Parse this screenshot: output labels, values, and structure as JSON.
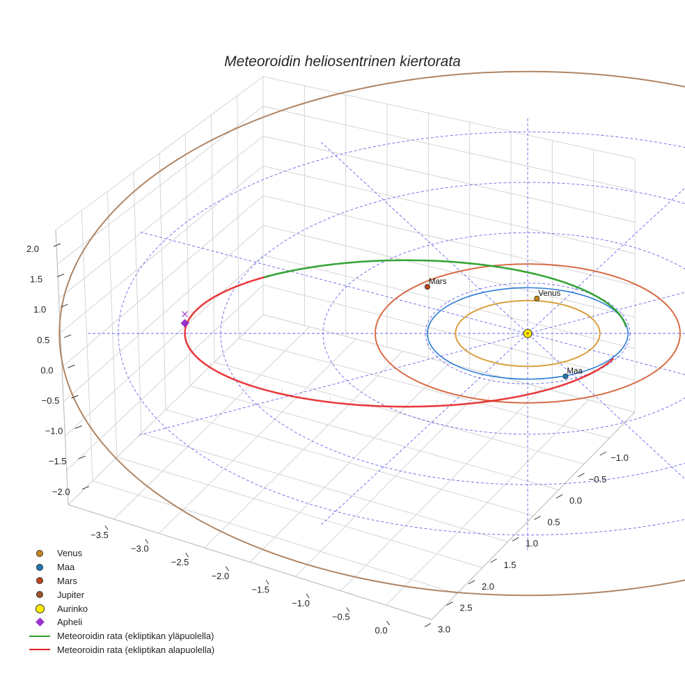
{
  "chart_data": {
    "type": "scatter",
    "title": "Meteoroidin heliosentrinen kiertorata",
    "axes": {
      "x_ticks": [
        "−3.5",
        "−3.0",
        "−2.5",
        "−2.0",
        "−1.5",
        "−1.0",
        "−0.5",
        "0.0"
      ],
      "y_ticks": [
        "−1.0",
        "−0.5",
        "0.0",
        "0.5",
        "1.0",
        "1.5",
        "2.0",
        "2.5",
        "3.0"
      ],
      "z_ticks": [
        "2.0",
        "1.5",
        "1.0",
        "0.5",
        "0.0",
        "−0.5",
        "−1.0",
        "−1.5",
        "−2.0"
      ],
      "x_range": [
        -3.7,
        0.2
      ],
      "y_range": [
        -1.3,
        3.1
      ],
      "z_range": [
        -2.2,
        2.2
      ],
      "grid": true
    },
    "sun": {
      "name": "Aurinko",
      "x": 0,
      "y": 0,
      "z": 0,
      "color": "#ffee00"
    },
    "planets": [
      {
        "name": "Venus",
        "orbit_radius": 0.72,
        "color": "#c8861a",
        "orbit_color": "#d9a040",
        "show_label": true
      },
      {
        "name": "Maa",
        "orbit_radius": 1.0,
        "color": "#1f77b4",
        "orbit_color": "#2b7bd6",
        "show_label": true
      },
      {
        "name": "Mars",
        "orbit_radius": 1.52,
        "color": "#c2441c",
        "orbit_color": "#d86a44",
        "show_label": true
      },
      {
        "name": "Jupiter",
        "orbit_radius": 5.2,
        "color": "#a0522d",
        "orbit_color": "#b08462",
        "show_label": false
      }
    ],
    "meteoroid_orbit": {
      "perihelion_au": 0.97,
      "aphelion_au": 3.35,
      "segments": [
        {
          "name": "Meteoroidin rata (ekliptikan yläpuolella)",
          "color": "#2ca02c"
        },
        {
          "name": "Meteoroidin rata (ekliptikan alapuolella)",
          "color": "#e41a1c"
        }
      ]
    },
    "aphelion": {
      "name": "Apheli",
      "color": "#9b30d0",
      "x": -3.35,
      "y": 0.0,
      "z": 0.15
    },
    "reference_circles_au": [
      1,
      2,
      3,
      4
    ],
    "legend": {
      "position": "lower-left",
      "entries": [
        {
          "label": "Venus",
          "marker": "dot",
          "color": "#c8861a"
        },
        {
          "label": "Maa",
          "marker": "dot",
          "color": "#1f77b4"
        },
        {
          "label": "Mars",
          "marker": "dot",
          "color": "#c2441c"
        },
        {
          "label": "Jupiter",
          "marker": "dot",
          "color": "#a0522d"
        },
        {
          "label": "Aurinko",
          "marker": "bigdot",
          "color": "#ffee00"
        },
        {
          "label": "Apheli",
          "marker": "diamond",
          "color": "#9b30d0"
        },
        {
          "label": "Meteoroidin rata (ekliptikan yläpuolella)",
          "marker": "line",
          "color": "#2ca02c"
        },
        {
          "label": "Meteoroidin rata (ekliptikan alapuolella)",
          "marker": "line",
          "color": "#e41a1c"
        }
      ]
    }
  }
}
